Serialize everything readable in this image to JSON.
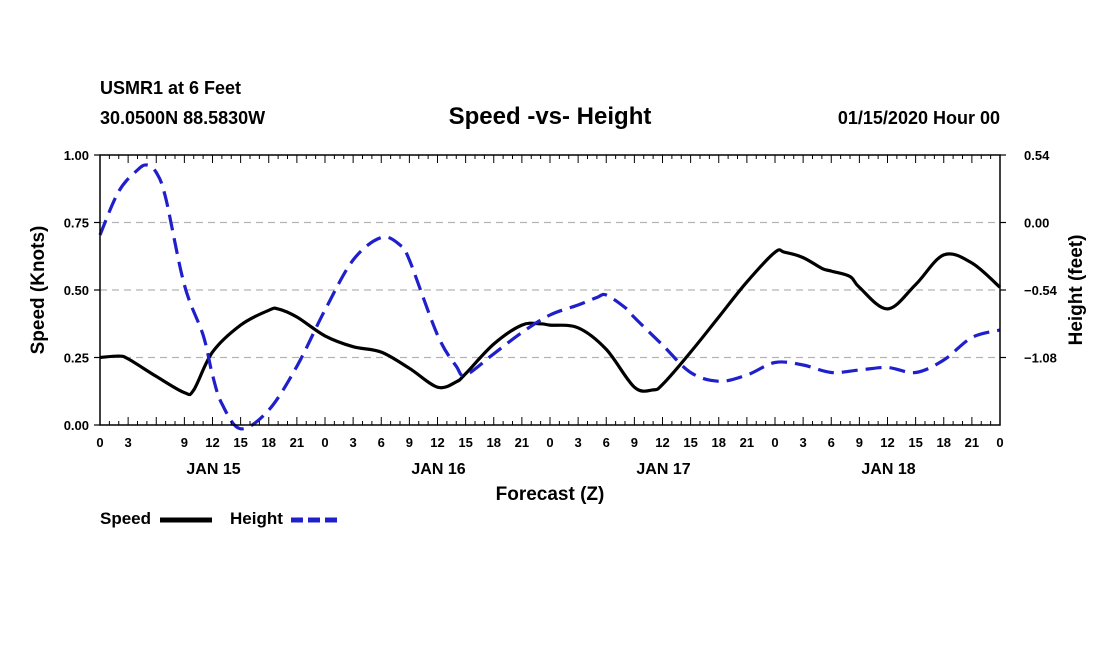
{
  "header": {
    "station": "USMR1 at 6 Feet",
    "coords": "30.0500N 88.5830W",
    "date": "01/15/2020 Hour 00"
  },
  "chart_data": {
    "type": "line",
    "title": "Speed -vs- Height",
    "xlabel": "Forecast (Z)",
    "ylabel_left": "Speed (Knots)",
    "ylabel_right": "Height (feet)",
    "x_ticks": [
      "0",
      "3",
      "9",
      "12",
      "15",
      "18",
      "21",
      "0",
      "3",
      "6",
      "9",
      "12",
      "15",
      "18",
      "21",
      "0",
      "3",
      "6",
      "9",
      "12",
      "15",
      "18",
      "21",
      "0",
      "3",
      "6",
      "9",
      "12",
      "15",
      "18",
      "21",
      "0"
    ],
    "x_tick_hours": [
      0,
      3,
      9,
      12,
      15,
      18,
      21,
      24,
      27,
      30,
      33,
      36,
      39,
      42,
      45,
      48,
      51,
      54,
      57,
      60,
      63,
      66,
      69,
      72,
      75,
      78,
      81,
      84,
      87,
      90,
      93,
      96
    ],
    "day_labels": [
      {
        "label": "JAN 15",
        "hour": 12
      },
      {
        "label": "JAN 16",
        "hour": 36
      },
      {
        "label": "JAN 17",
        "hour": 60
      },
      {
        "label": "JAN 18",
        "hour": 84
      }
    ],
    "x_range": [
      0,
      96
    ],
    "y_left": {
      "range": [
        0,
        1
      ],
      "ticks": [
        "0.00",
        "0.25",
        "0.50",
        "0.75",
        "1.00"
      ],
      "values": [
        0,
        0.25,
        0.5,
        0.75,
        1.0
      ]
    },
    "y_right": {
      "range": [
        -1.62,
        0.54
      ],
      "ticks": [
        "0.54",
        "0.00",
        "−0.54",
        "−1.08"
      ],
      "values": [
        0.54,
        0.0,
        -0.54,
        -1.08
      ]
    },
    "grid": true,
    "legend": {
      "position": "bottom-left"
    },
    "series": [
      {
        "name": "Speed",
        "axis": "left",
        "color": "#000000",
        "dash": false,
        "x": [
          0,
          2,
          3,
          6,
          9,
          10,
          12,
          15,
          18,
          19,
          21,
          24,
          27,
          30,
          33,
          36,
          38,
          39,
          42,
          45,
          47,
          48,
          51,
          54,
          57,
          59,
          60,
          63,
          66,
          69,
          72,
          73,
          75,
          77,
          78,
          80,
          81,
          84,
          87,
          90,
          93,
          96
        ],
        "y": [
          0.25,
          0.255,
          0.245,
          0.18,
          0.12,
          0.13,
          0.27,
          0.37,
          0.425,
          0.43,
          0.4,
          0.33,
          0.29,
          0.27,
          0.21,
          0.14,
          0.16,
          0.19,
          0.3,
          0.37,
          0.375,
          0.37,
          0.36,
          0.28,
          0.14,
          0.13,
          0.15,
          0.27,
          0.4,
          0.53,
          0.64,
          0.64,
          0.62,
          0.58,
          0.57,
          0.55,
          0.51,
          0.43,
          0.52,
          0.63,
          0.6,
          0.51
        ]
      },
      {
        "name": "Height",
        "axis": "right",
        "color": "#1f1fcc",
        "dash": true,
        "x": [
          0,
          2,
          4,
          5,
          6,
          7,
          9,
          11,
          12,
          13,
          15,
          18,
          21,
          24,
          27,
          30,
          32,
          33,
          36,
          38,
          39,
          42,
          45,
          48,
          51,
          53,
          54,
          56,
          57,
          60,
          63,
          66,
          69,
          72,
          75,
          78,
          81,
          84,
          87,
          90,
          93,
          96
        ],
        "y": [
          -0.1,
          0.25,
          0.42,
          0.46,
          0.4,
          0.2,
          -0.5,
          -0.9,
          -1.22,
          -1.45,
          -1.65,
          -1.5,
          -1.15,
          -0.7,
          -0.3,
          -0.12,
          -0.18,
          -0.3,
          -0.9,
          -1.15,
          -1.22,
          -1.05,
          -0.88,
          -0.74,
          -0.66,
          -0.6,
          -0.58,
          -0.68,
          -0.76,
          -0.98,
          -1.2,
          -1.27,
          -1.22,
          -1.12,
          -1.14,
          -1.2,
          -1.18,
          -1.16,
          -1.2,
          -1.1,
          -0.92,
          -0.86
        ]
      }
    ]
  }
}
